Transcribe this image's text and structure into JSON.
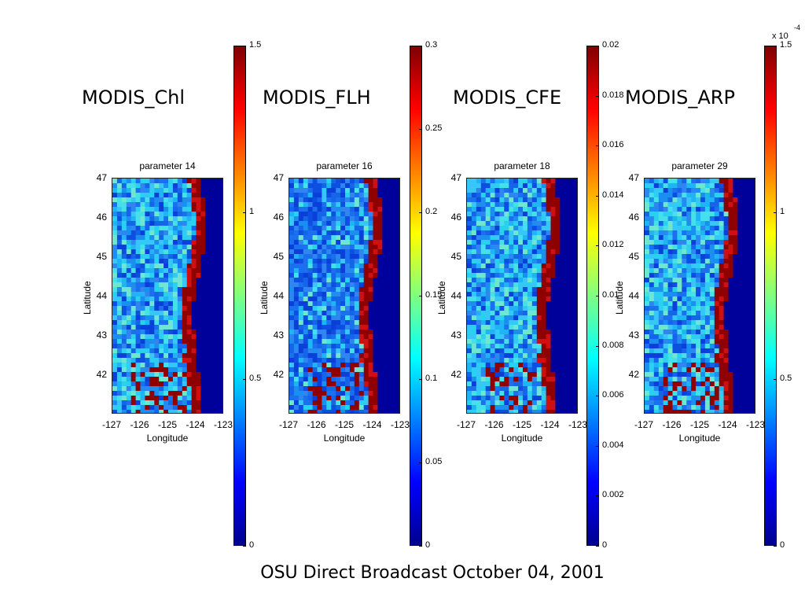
{
  "footer": "OSU Direct Broadcast  October 04, 2001",
  "chart_data": [
    {
      "type": "heatmap",
      "title": "MODIS_Chl",
      "subtitle": "parameter 14",
      "xlabel": "Longitude",
      "ylabel": "Latitude",
      "xticks": [
        "-127",
        "-126",
        "-125",
        "-124",
        "-123"
      ],
      "yticks": [
        "47",
        "46",
        "45",
        "44",
        "43",
        "42"
      ],
      "xlim": [
        -127,
        -123
      ],
      "ylim": [
        41,
        47
      ],
      "colorbar": {
        "ticks": [
          "1.5",
          "1",
          "0.5",
          "0"
        ],
        "range": [
          0,
          1.5
        ]
      }
    },
    {
      "type": "heatmap",
      "title": "MODIS_FLH",
      "subtitle": "parameter 16",
      "xlabel": "Longitude",
      "ylabel": "Latitude",
      "xticks": [
        "-127",
        "-126",
        "-125",
        "-124",
        "-123"
      ],
      "yticks": [
        "47",
        "46",
        "45",
        "44",
        "43",
        "42"
      ],
      "xlim": [
        -127,
        -123
      ],
      "ylim": [
        41,
        47
      ],
      "colorbar": {
        "ticks": [
          "0.3",
          "0.25",
          "0.2",
          "0.15",
          "0.1",
          "0.05",
          "0"
        ],
        "range": [
          0,
          0.3
        ]
      }
    },
    {
      "type": "heatmap",
      "title": "MODIS_CFE",
      "subtitle": "parameter 18",
      "xlabel": "Longitude",
      "ylabel": "Latitude",
      "xticks": [
        "-127",
        "-126",
        "-125",
        "-124",
        "-123"
      ],
      "yticks": [
        "47",
        "46",
        "45",
        "44",
        "43",
        "42"
      ],
      "xlim": [
        -127,
        -123
      ],
      "ylim": [
        41,
        47
      ],
      "colorbar": {
        "ticks": [
          "0.02",
          "0.018",
          "0.016",
          "0.014",
          "0.012",
          "0.01",
          "0.008",
          "0.006",
          "0.004",
          "0.002",
          "0"
        ],
        "range": [
          0,
          0.02
        ]
      }
    },
    {
      "type": "heatmap",
      "title": "MODIS_ARP",
      "subtitle": "parameter 29",
      "xlabel": "Longitude",
      "ylabel": "Latitude",
      "xticks": [
        "-127",
        "-126",
        "-125",
        "-124",
        "-123"
      ],
      "yticks": [
        "47",
        "46",
        "45",
        "44",
        "43",
        "42"
      ],
      "xlim": [
        -127,
        -123
      ],
      "ylim": [
        41,
        47
      ],
      "colorbar": {
        "ticks": [
          "1.5",
          "1",
          "0.5",
          "0"
        ],
        "range": [
          0,
          1.5
        ],
        "multiplier": "x 10",
        "exponent": "-4"
      }
    }
  ]
}
